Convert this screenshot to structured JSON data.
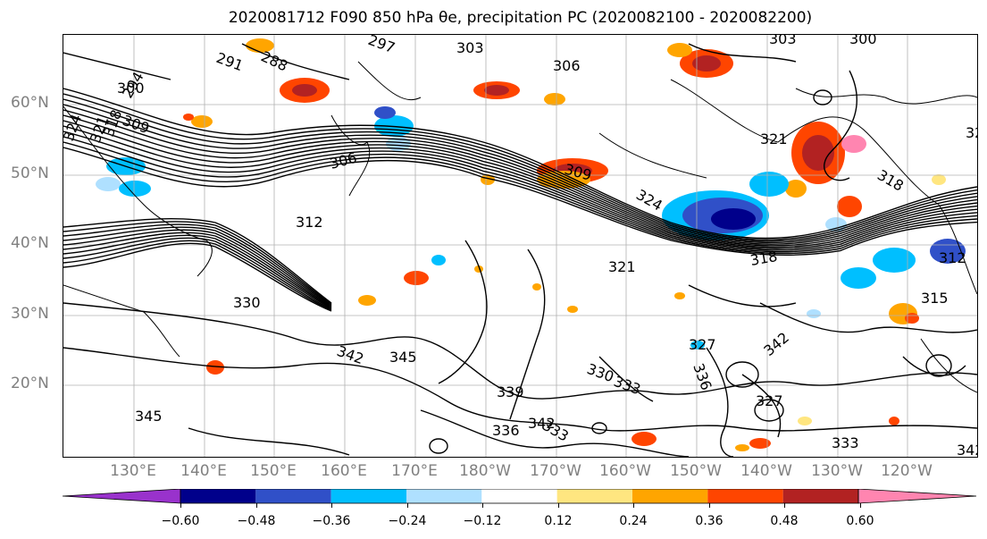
{
  "title": "2020081712 F090 850 hPa θe, precipitation PC (2020082100 - 2020082200)",
  "map": {
    "latitude_labels": [
      "60°N",
      "50°N",
      "40°N",
      "30°N",
      "20°N"
    ],
    "longitude_labels": [
      "130°E",
      "140°E",
      "150°E",
      "160°E",
      "170°E",
      "180°W",
      "170°W",
      "160°W",
      "150°W",
      "140°W",
      "130°W",
      "120°W"
    ],
    "contour_labels": [
      "294",
      "291",
      "288",
      "297",
      "303",
      "306",
      "300",
      "303",
      "300",
      "309",
      "324",
      "321",
      "318",
      "306",
      "312",
      "309",
      "321",
      "318",
      "324",
      "327",
      "321",
      "330",
      "345",
      "342",
      "330",
      "333",
      "339",
      "336",
      "333",
      "336",
      "342",
      "327",
      "333",
      "342",
      "345",
      "342",
      "321",
      "318",
      "315",
      "312"
    ],
    "colors": {
      "contour": "#000000",
      "grid": "#b0b0b0",
      "coast": "#000000",
      "tick_label": "#808080"
    }
  },
  "colorbar": {
    "tick_labels": [
      "−0.60",
      "−0.48",
      "−0.36",
      "−0.24",
      "−0.12",
      "0.12",
      "0.24",
      "0.36",
      "0.48",
      "0.60"
    ],
    "colors": [
      "#9932cc",
      "#00008b",
      "#3050c8",
      "#00bfff",
      "#afe0ff",
      "#ffffff",
      "#ffe680",
      "#ffa500",
      "#ff4500",
      "#b22222",
      "#ff85b0"
    ]
  }
}
